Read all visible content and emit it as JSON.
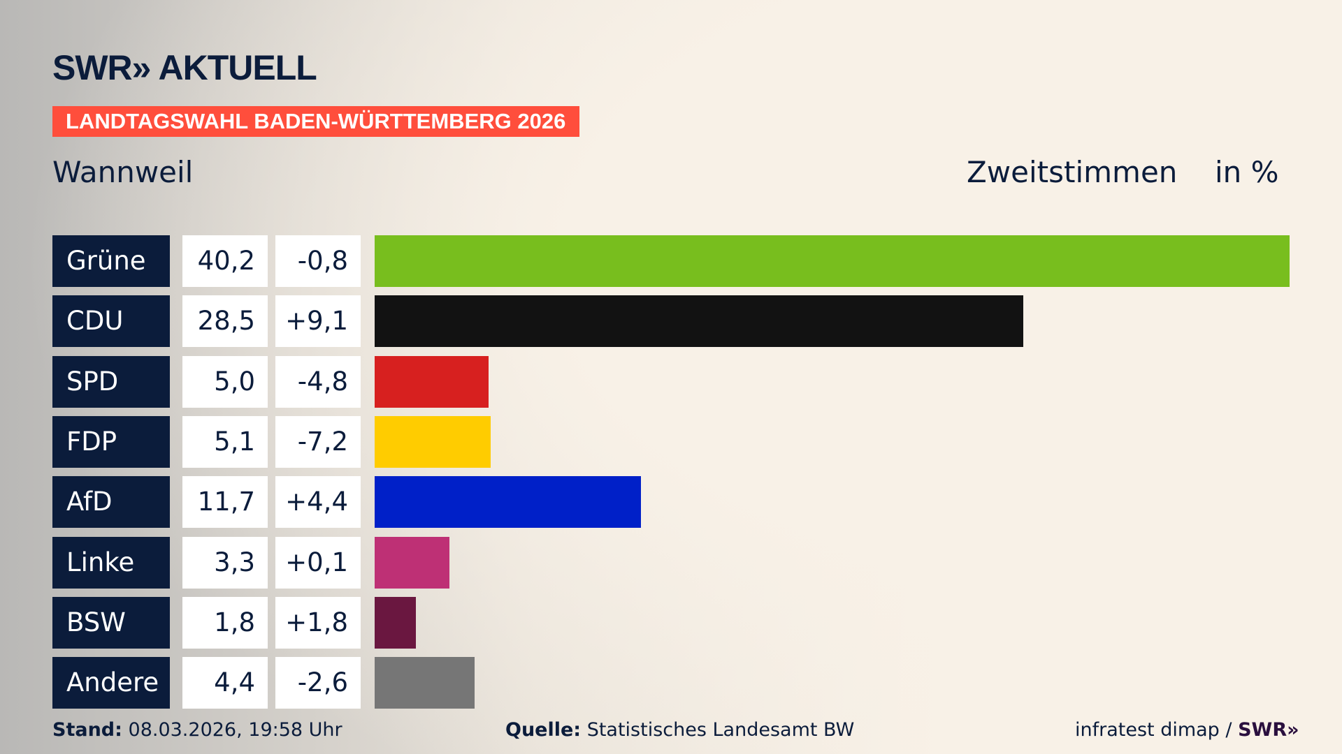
{
  "header": {
    "logo": "SWR» AKTUELL",
    "banner": "LANDTAGSWAHL BADEN-WÜRTTEMBERG 2026",
    "place": "Wannweil",
    "measure": "Zweitstimmen",
    "unit": "in %"
  },
  "chart_data": {
    "type": "bar",
    "orientation": "horizontal",
    "xlim": [
      0,
      40.2
    ],
    "categories": [
      "Grüne",
      "CDU",
      "SPD",
      "FDP",
      "AfD",
      "Linke",
      "BSW",
      "Andere"
    ],
    "values": [
      40.2,
      28.5,
      5.0,
      5.1,
      11.7,
      3.3,
      1.8,
      4.4
    ],
    "value_labels": [
      "40,2",
      "28,5",
      "5,0",
      "5,1",
      "11,7",
      "3,3",
      "1,8",
      "4,4"
    ],
    "diff_labels": [
      "-0,8",
      "+9,1",
      "-4,8",
      "-7,2",
      "+4,4",
      "+0,1",
      "+1,8",
      "-2,6"
    ],
    "colors": [
      "#78be1e",
      "#121212",
      "#d7201f",
      "#ffcc00",
      "#0020c8",
      "#be3075",
      "#6a1740",
      "#767676"
    ]
  },
  "footer": {
    "stand_label": "Stand:",
    "stand": "08.03.2026, 19:58 Uhr",
    "quelle_label": "Quelle:",
    "quelle": "Statistisches Landesamt BW",
    "credit": "infratest dimap / ",
    "credit_logo": "SWR»"
  }
}
